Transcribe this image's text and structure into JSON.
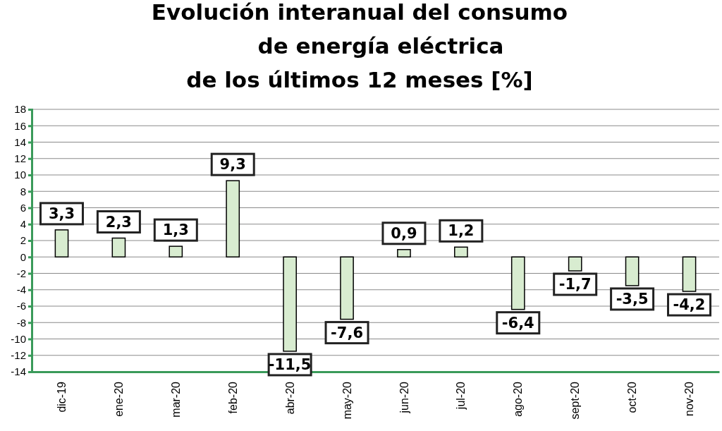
{
  "chart_data": {
    "type": "bar",
    "title": "Evolución interanual del consumo\nde energía eléctrica\nde los últimos 12 meses [%]",
    "categories": [
      "dic-19",
      "ene-20",
      "mar-20",
      "feb-20",
      "abr-20",
      "may-20",
      "jun-20",
      "jul-20",
      "ago-20",
      "sept-20",
      "oct-20",
      "nov-20"
    ],
    "values": [
      3.3,
      2.3,
      1.3,
      9.3,
      -11.5,
      -7.6,
      0.9,
      1.2,
      -6.4,
      -1.7,
      -3.5,
      -4.2
    ],
    "value_labels": [
      "3,3",
      "2,3",
      "1,3",
      "9,3",
      "-11,5",
      "-7,6",
      "0,9",
      "1,2",
      "-6,4",
      "-1,7",
      "-3,5",
      "-4,2"
    ],
    "color": "#d8ecd0",
    "ylim": [
      -14,
      18
    ],
    "yticks": [
      -14,
      -12,
      -10,
      -8,
      -6,
      -4,
      -2,
      0,
      2,
      4,
      6,
      8,
      10,
      12,
      14,
      16,
      18
    ],
    "grid": "y"
  }
}
